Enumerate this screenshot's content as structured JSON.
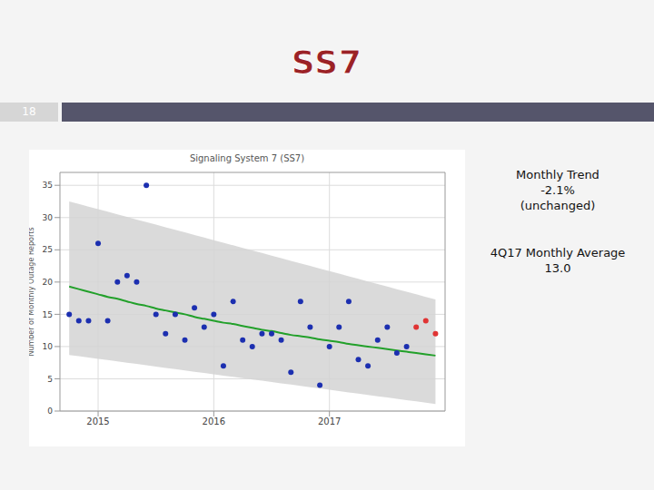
{
  "slide": {
    "title": "SS7",
    "number": "18",
    "notes": [
      [
        "Monthly Trend",
        "-2.1%",
        "(unchanged)"
      ],
      [
        "4Q17 Monthly Average",
        "13.0"
      ]
    ]
  },
  "chart_data": {
    "type": "scatter",
    "title": "Signaling System 7 (SS7)",
    "y_label": "Number of Monthly Outage Reports",
    "x": [
      2014.75,
      2014.833,
      2014.917,
      2015,
      2015.083,
      2015.167,
      2015.25,
      2015.333,
      2015.417,
      2015.5,
      2015.583,
      2015.667,
      2015.75,
      2015.833,
      2015.917,
      2016,
      2016.083,
      2016.167,
      2016.25,
      2016.333,
      2016.417,
      2016.5,
      2016.583,
      2016.667,
      2016.75,
      2016.833,
      2016.917,
      2017,
      2017.083,
      2017.167,
      2017.25,
      2017.333,
      2017.417,
      2017.5,
      2017.583,
      2017.667,
      2017.75,
      2017.833,
      2017.917
    ],
    "xlim": [
      2014.67,
      2018
    ],
    "xticks": [
      2015,
      2016,
      2017
    ],
    "ylim": [
      0,
      37
    ],
    "yticks": [
      0,
      5,
      10,
      15,
      20,
      25,
      30,
      35
    ],
    "grid": true,
    "series": [
      {
        "type": "band",
        "color": "#d4d4d4",
        "lower": [
          8.7,
          8.5,
          8.3,
          8.1,
          7.9,
          7.7,
          7.5,
          7.3,
          7.1,
          6.9,
          6.7,
          6.5,
          6.3,
          6.1,
          5.9,
          5.7,
          5.5,
          5.3,
          5.1,
          4.9,
          4.7,
          4.5,
          4.3,
          4.1,
          3.9,
          3.7,
          3.5,
          3.3,
          3.1,
          2.9,
          2.7,
          2.5,
          2.3,
          2.1,
          1.9,
          1.7,
          1.5,
          1.3,
          1.1
        ],
        "upper": [
          32.5,
          32.1,
          31.7,
          31.3,
          30.9,
          30.5,
          30.1,
          29.7,
          29.3,
          28.9,
          28.5,
          28.1,
          27.7,
          27.3,
          26.9,
          26.5,
          26.1,
          25.7,
          25.3,
          24.9,
          24.5,
          24.1,
          23.7,
          23.3,
          22.9,
          22.5,
          22.1,
          21.7,
          21.3,
          20.9,
          20.5,
          20.1,
          19.7,
          19.3,
          18.9,
          18.5,
          18.1,
          17.7,
          17.3
        ]
      },
      {
        "type": "line",
        "color": "#22a02a",
        "line_style": "solid",
        "values": [
          19.3,
          18.9,
          18.5,
          18.1,
          17.7,
          17.4,
          17.0,
          16.6,
          16.3,
          15.9,
          15.6,
          15.3,
          15.0,
          14.6,
          14.3,
          14.0,
          13.7,
          13.5,
          13.2,
          12.9,
          12.6,
          12.4,
          12.1,
          11.8,
          11.6,
          11.4,
          11.1,
          10.9,
          10.7,
          10.4,
          10.2,
          10.0,
          9.8,
          9.6,
          9.4,
          9.2,
          9.0,
          8.8,
          8.6
        ]
      },
      {
        "type": "scatter",
        "color": "#1c2fb0",
        "marker": "circle",
        "values": [
          15,
          14,
          14,
          26,
          14,
          20,
          21,
          20,
          35,
          15,
          12,
          15,
          11,
          16,
          13,
          15,
          7,
          17,
          11,
          10,
          12,
          12,
          11,
          6,
          17,
          13,
          4,
          10,
          13,
          17,
          8,
          7,
          11,
          13,
          9,
          10,
          null,
          null,
          null
        ]
      },
      {
        "type": "scatter",
        "color": "#e03434",
        "marker": "circle",
        "values": [
          null,
          null,
          null,
          null,
          null,
          null,
          null,
          null,
          null,
          null,
          null,
          null,
          null,
          null,
          null,
          null,
          null,
          null,
          null,
          null,
          null,
          null,
          null,
          null,
          null,
          null,
          null,
          null,
          null,
          null,
          null,
          null,
          null,
          null,
          null,
          null,
          13,
          14,
          12
        ]
      }
    ]
  }
}
